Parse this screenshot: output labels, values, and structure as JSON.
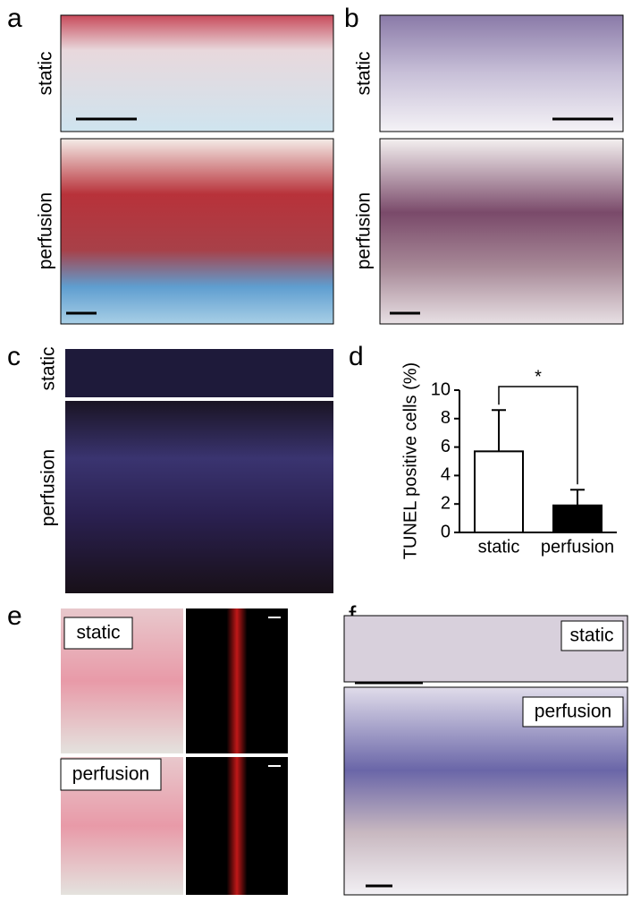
{
  "panels": {
    "a": {
      "letter": "a",
      "top_label": "static",
      "bottom_label": "perfusion"
    },
    "b": {
      "letter": "b",
      "top_label": "static",
      "bottom_label": "perfusion"
    },
    "c": {
      "letter": "c",
      "top_label": "static",
      "bottom_label": "perfusion"
    },
    "d": {
      "letter": "d"
    },
    "e": {
      "letter": "e",
      "top_label": "static",
      "bottom_label": "perfusion"
    },
    "f": {
      "letter": "f",
      "top_label": "static",
      "bottom_label": "perfusion"
    }
  },
  "chart_data": {
    "type": "bar",
    "y_label": "TUNEL positive cells (%)",
    "categories": [
      "static",
      "perfusion"
    ],
    "values": [
      5.7,
      1.9
    ],
    "errors": [
      2.9,
      1.1
    ],
    "colors": [
      "#ffffff",
      "#000000"
    ],
    "ylim": [
      0,
      10
    ],
    "yticks": [
      0,
      2,
      4,
      6,
      8,
      10
    ],
    "significance": "*"
  }
}
